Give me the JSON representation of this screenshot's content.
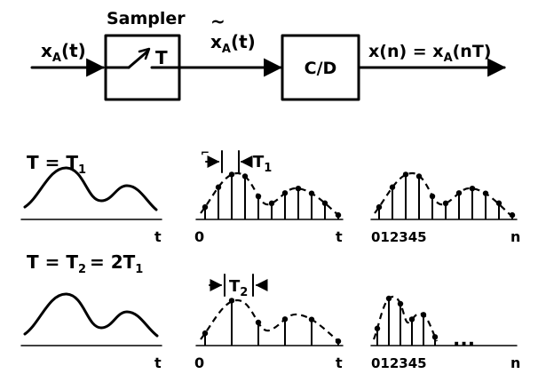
{
  "block_diagram": {
    "input_label": "x",
    "input_sub": "A",
    "input_arg": "(t)",
    "sampler_title": "Sampler",
    "sampler_T": "T",
    "mid_label": "x",
    "mid_tilde": "~",
    "mid_sub": "A",
    "mid_arg": "(t)",
    "cd_label": "C/D",
    "output_main": "x(n) = x",
    "output_sub": "A",
    "output_arg": "(nT)"
  },
  "row1": {
    "condition_main": "T = T",
    "condition_sub": "1",
    "t_axis_label": "t",
    "sampled_origin": "0",
    "sampled_t_label": "t",
    "period_label": "T",
    "period_sub": "1",
    "index_ticks": "012345",
    "n_label": "n"
  },
  "row2": {
    "condition_main": "T = T",
    "condition_sub": "2",
    "condition_rest": "= 2T",
    "condition_rest_sub": "1",
    "t_axis_label": "t",
    "sampled_origin": "0",
    "sampled_t_label": "t",
    "period_label": "T",
    "period_sub": "2",
    "index_ticks": "012345",
    "n_label": "n",
    "ellipsis": "..."
  }
}
